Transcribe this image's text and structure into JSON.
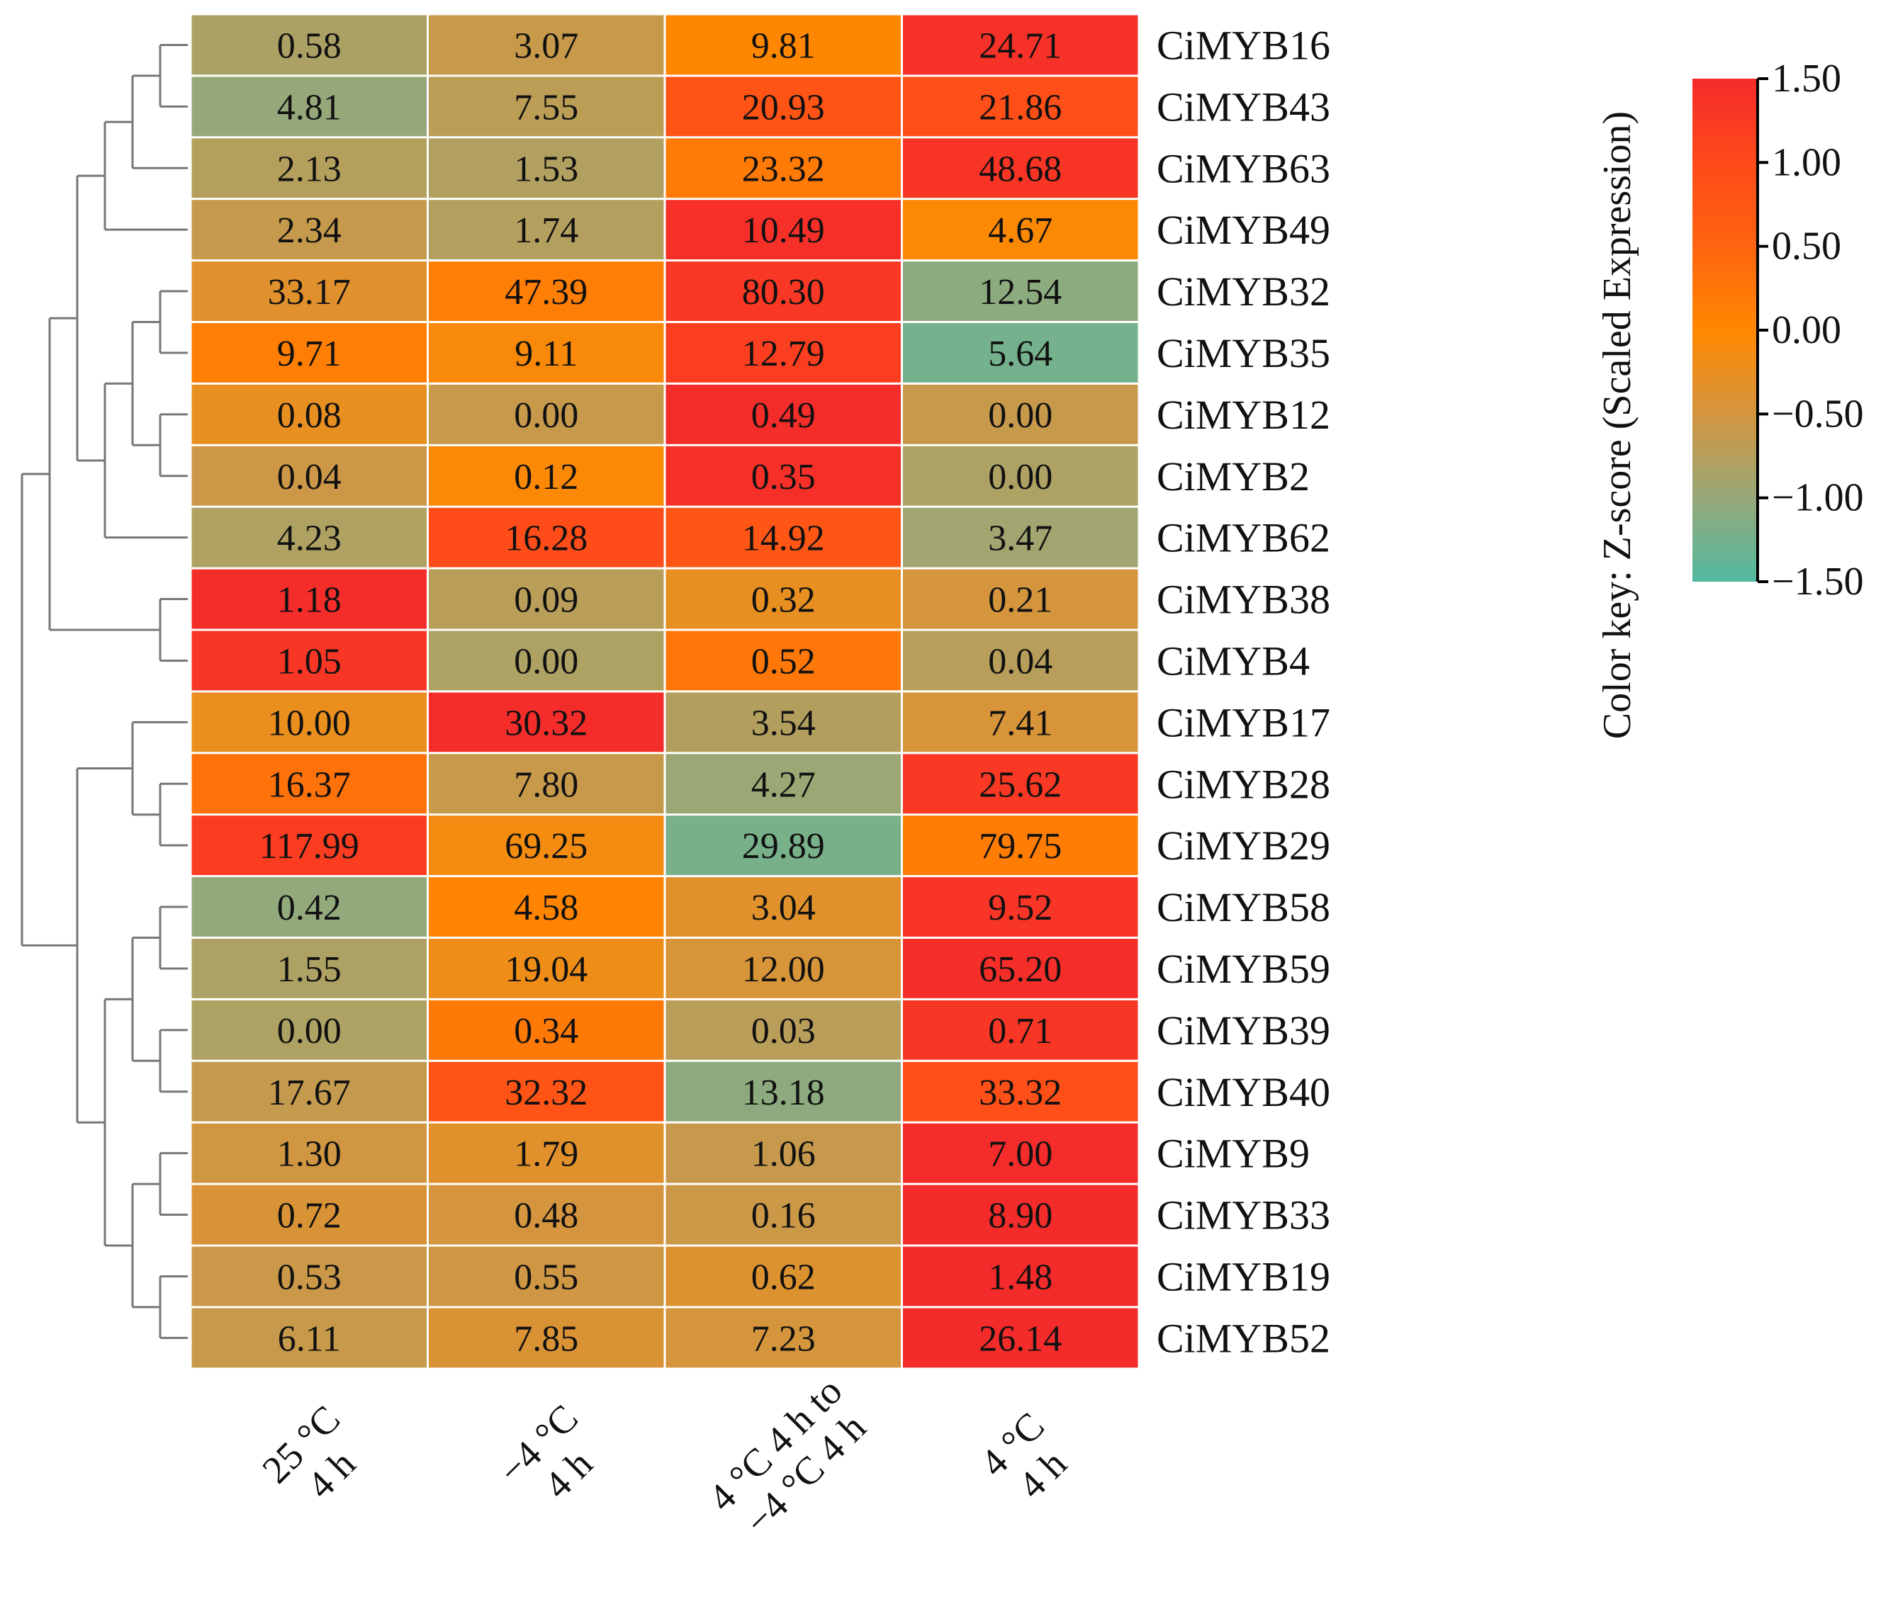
{
  "chart_data": {
    "type": "heatmap",
    "title": "",
    "columns": [
      [
        "25 °C",
        "4 h"
      ],
      [
        "−4 °C",
        "4 h"
      ],
      [
        "4 °C 4 h to",
        "−4 °C 4 h"
      ],
      [
        "4 °C",
        "4 h"
      ]
    ],
    "rows": [
      "CiMYB16",
      "CiMYB43",
      "CiMYB63",
      "CiMYB49",
      "CiMYB32",
      "CiMYB35",
      "CiMYB12",
      "CiMYB2",
      "CiMYB62",
      "CiMYB38",
      "CiMYB4",
      "CiMYB17",
      "CiMYB28",
      "CiMYB29",
      "CiMYB58",
      "CiMYB59",
      "CiMYB39",
      "CiMYB40",
      "CiMYB9",
      "CiMYB33",
      "CiMYB19",
      "CiMYB52"
    ],
    "values": [
      [
        "0.58",
        "3.07",
        "9.81",
        "24.71"
      ],
      [
        "4.81",
        "7.55",
        "20.93",
        "21.86"
      ],
      [
        "2.13",
        "1.53",
        "23.32",
        "48.68"
      ],
      [
        "2.34",
        "1.74",
        "10.49",
        "4.67"
      ],
      [
        "33.17",
        "47.39",
        "80.30",
        "12.54"
      ],
      [
        "9.71",
        "9.11",
        "12.79",
        "5.64"
      ],
      [
        "0.08",
        "0.00",
        "0.49",
        "0.00"
      ],
      [
        "0.04",
        "0.12",
        "0.35",
        "0.00"
      ],
      [
        "4.23",
        "16.28",
        "14.92",
        "3.47"
      ],
      [
        "1.18",
        "0.09",
        "0.32",
        "0.21"
      ],
      [
        "1.05",
        "0.00",
        "0.52",
        "0.04"
      ],
      [
        "10.00",
        "30.32",
        "3.54",
        "7.41"
      ],
      [
        "16.37",
        "7.80",
        "4.27",
        "25.62"
      ],
      [
        "117.99",
        "69.25",
        "29.89",
        "79.75"
      ],
      [
        "0.42",
        "4.58",
        "3.04",
        "9.52"
      ],
      [
        "1.55",
        "19.04",
        "12.00",
        "65.20"
      ],
      [
        "0.00",
        "0.34",
        "0.03",
        "0.71"
      ],
      [
        "17.67",
        "32.32",
        "13.18",
        "33.32"
      ],
      [
        "1.30",
        "1.79",
        "1.06",
        "7.00"
      ],
      [
        "0.72",
        "0.48",
        "0.16",
        "8.90"
      ],
      [
        "0.53",
        "0.55",
        "0.62",
        "1.48"
      ],
      [
        "6.11",
        "7.85",
        "7.23",
        "26.14"
      ]
    ],
    "dendrogram": {
      "root": "N21",
      "nodes": {
        "N1": [
          "L0",
          "L1"
        ],
        "N2": [
          "N1",
          "L2"
        ],
        "N3": [
          "N2",
          "L3"
        ],
        "N4": [
          "L4",
          "L5"
        ],
        "N5": [
          "L6",
          "L7"
        ],
        "N6": [
          "N4",
          "N5"
        ],
        "N7": [
          "N6",
          "L8"
        ],
        "N8": [
          "N3",
          "N7"
        ],
        "N9": [
          "L9",
          "L10"
        ],
        "N10": [
          "N8",
          "N9"
        ],
        "N11": [
          "L12",
          "L13"
        ],
        "N12": [
          "L11",
          "N11"
        ],
        "N13": [
          "L14",
          "L15"
        ],
        "N14": [
          "L16",
          "L17"
        ],
        "N15": [
          "N13",
          "N14"
        ],
        "N16": [
          "L18",
          "L19"
        ],
        "N17": [
          "L20",
          "L21"
        ],
        "N18": [
          "N16",
          "N17"
        ],
        "N19": [
          "N15",
          "N18"
        ],
        "N20": [
          "N12",
          "N19"
        ],
        "N21": [
          "N10",
          "N20"
        ]
      }
    },
    "colorbar": {
      "label": "Color key: Z-score (Scaled Expression)",
      "ticks": [
        "1.50",
        "1.00",
        "0.50",
        "0.00",
        "−0.50",
        "−1.00",
        "−1.50"
      ],
      "range": [
        -1.5,
        1.5
      ],
      "stops": [
        {
          "v": -1.5,
          "color": "#52b9a0"
        },
        {
          "v": -1.0,
          "color": "#97a878"
        },
        {
          "v": -0.5,
          "color": "#d3953f"
        },
        {
          "v": 0.0,
          "color": "#ff8800"
        },
        {
          "v": 0.5,
          "color": "#ff6410"
        },
        {
          "v": 1.0,
          "color": "#ff4a1a"
        },
        {
          "v": 1.5,
          "color": "#f42b2b"
        }
      ]
    }
  }
}
